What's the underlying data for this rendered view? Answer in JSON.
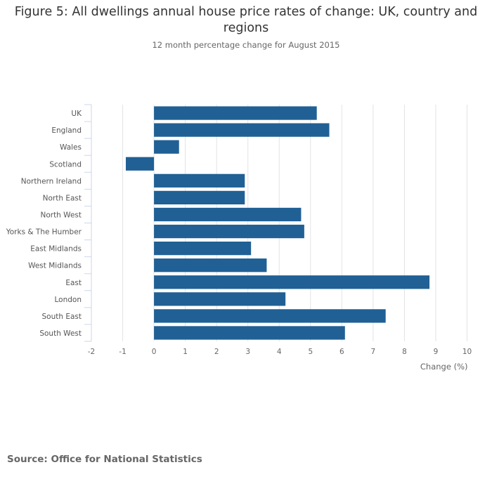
{
  "chart_data": {
    "type": "bar",
    "orientation": "horizontal",
    "title": "Figure 5: All dwellings annual house price rates of change: UK, country and regions",
    "subtitle": "12 month percentage change for August 2015",
    "categories": [
      "UK",
      "England",
      "Wales",
      "Scotland",
      "Northern Ireland",
      "North East",
      "North West",
      "Yorks & The Humber",
      "East Midlands",
      "West Midlands",
      "East",
      "London",
      "South East",
      "South West"
    ],
    "values": [
      5.2,
      5.6,
      0.8,
      -0.9,
      2.9,
      2.9,
      4.7,
      4.8,
      3.1,
      3.6,
      8.8,
      4.2,
      7.4,
      6.1
    ],
    "xlabel": "Change (%)",
    "ylabel": "",
    "xlim": [
      -2,
      10
    ],
    "xticks": [
      "-2",
      "-1",
      "0",
      "1",
      "2",
      "3",
      "4",
      "5",
      "6",
      "7",
      "8",
      "9",
      "10"
    ],
    "grid": true,
    "legend": "none",
    "bar_color": "#206095"
  },
  "source": "Source: Office for National Statistics"
}
